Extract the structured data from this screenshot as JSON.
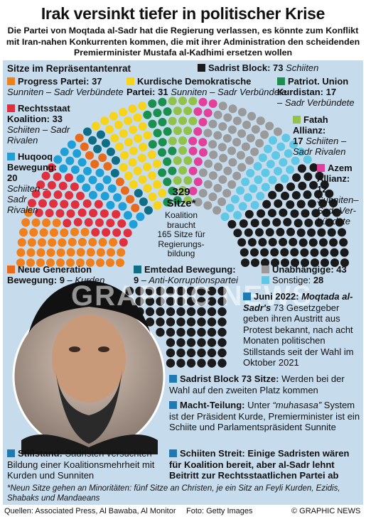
{
  "header": {
    "title": "Irak versinkt tiefer in politischer Krise",
    "subtitle": "Die Partei von Moqtada al-Sadr hat die Regierung verlassen, es könnte zum Konflikt mit Iran-nahen Konkurrenten kommen, die mit ihrer Administration den scheidenden Premierminister Mustafa al-Kadhimi ersetzen wollen"
  },
  "chart_data": {
    "type": "parliament",
    "title": "Sitze im Repräsentantenrat",
    "total_seats": 329,
    "series": [
      {
        "name": "Progress Partei",
        "seats": 37,
        "note": "Sunniten – Sadr Verbündete",
        "color": "#f07f1e"
      },
      {
        "name": "Rechtsstaat Koalition",
        "seats": 33,
        "note": "Schiiten – Sadr Rivalen",
        "color": "#e0303e"
      },
      {
        "name": "Huqooq Bewegung",
        "seats": 20,
        "note": "Schiiten – Sadr Rivalen",
        "color": "#1e9fd8"
      },
      {
        "name": "Neue Generation Bewegung",
        "seats": 9,
        "note": "Kurden",
        "color": "#e86a1c"
      },
      {
        "name": "Emtedad Bewegung",
        "seats": 9,
        "note": "Anti-Korruptionspartei",
        "color": "#0f6e86"
      },
      {
        "name": "Kurdische Demokratische Partei",
        "seats": 31,
        "note": "Sunniten – Sadr Verbündete",
        "color": "#f7d31a"
      },
      {
        "name": "Patriot. Union Kurdistan",
        "seats": 17,
        "note": "Sadr Verbündete",
        "color": "#1a8f4e"
      },
      {
        "name": "Fatah Allianz",
        "seats": 17,
        "note": "Schiiten – Sadr Rivalen",
        "color": "#92c24a"
      },
      {
        "name": "Azem Allianz",
        "seats": 12,
        "note": "Sunniten–Sadr Verbündete",
        "color": "#e2409a"
      },
      {
        "name": "Unabhängige",
        "seats": 43,
        "note": "",
        "color": "#9a9a9a"
      },
      {
        "name": "Sonstige",
        "seats": 28,
        "note": "",
        "color": "#5ec8e6"
      },
      {
        "name": "Sadrist Block",
        "seats": 73,
        "note": "Schiiten",
        "color": "#1a1a1a"
      }
    ]
  },
  "labels": {
    "chamber": "Sitze im Repräsentantenrat",
    "progress_name": "Progress Partei:",
    "progress_seats": "37",
    "progress_note": "Sunniten – Sadr Verbündete",
    "kdp_name_1": "Kurdische Demokratische",
    "kdp_name_2": "Partei:",
    "kdp_seats": "31",
    "kdp_note": "Sunniten – Sadr Verbündete",
    "sadr_name": "Sadrist Block:",
    "sadr_seats": "73",
    "sadr_note": "Schiiten",
    "puk_name_1": "Patriot. Union",
    "puk_name_2": "Kurdistan:",
    "puk_seats": "17",
    "puk_note": "– Sadr Verbündete",
    "rechts_name_1": "Rechtsstaat",
    "rechts_name_2": "Koalition:",
    "rechts_seats": "33",
    "rechts_note_1": "Schiiten – Sadr",
    "rechts_note_2": "Rivalen",
    "fatah_name_1": "Fatah",
    "fatah_name_2": "Allianz:",
    "fatah_seats": "17",
    "fatah_note_1": "Schiiten –",
    "fatah_note_2": "Sadr Rivalen",
    "huqooq_name_1": "Huqooq",
    "huqooq_name_2": "Bewegung:",
    "huqooq_seats": "20",
    "huqooq_note_1": "Schiiten –",
    "huqooq_note_2": "Sadr",
    "huqooq_note_3": "Rivalen",
    "azem_name_1": "Azem",
    "azem_name_2": "Allianz:",
    "azem_seats": "12",
    "azem_note_1": "Sunniten–",
    "azem_note_2": "Sadr Ver-",
    "azem_note_3": "bündete",
    "total": "329",
    "total_unit": "Sitze*",
    "coalition_1": "Koalition",
    "coalition_2": "braucht",
    "coalition_3": "165 Sitze für",
    "coalition_4": "Regierungs-",
    "coalition_5": "bildung",
    "newgen_name_1": "Neue Generation",
    "newgen_name_2": "Bewegung:",
    "newgen_seats": "9",
    "newgen_note": "– Kurden",
    "emtedad_name": "Emtedad Bewegung:",
    "emtedad_seats": "9",
    "emtedad_note": "– Anti-Korruptionspartei",
    "indep_name": "Unabhängige:",
    "indep_seats": "43",
    "other_name": "Sonstige:",
    "other_seats": "28"
  },
  "notes": {
    "june_head": "Juni 2022:",
    "june_bold": "Moqtada al-Sadr's",
    "june_text": "73 Gesetzgeber geben ihren Austritt aus Protest bekannt, nach acht Monaten politischen Stillstands seit der Wahl im Oktober 2021",
    "block_head": "Sadrist Block 73 Sitze:",
    "block_text": "Werden bei der Wahl auf den zweiten Platz kommen",
    "power_head": "Macht-Teilung:",
    "power_word": "Unter",
    "power_italic": "“muhasasa”",
    "power_text": "System ist der Präsident Kurde, Premierminister ist ein Schiite und Parlamentspräsident Sunnite",
    "stand_head": "Stillstand:",
    "stand_text": "Sadristen versuchten Bildung einer Koalitionsmehrheit mit Kurden und Sunniten",
    "shia_head": "Schiiten Streit:",
    "shia_text": "Einige Sadristen wären für Koalition bereit, aber al-Sadr lehnt Beitritt zur Rechtsstaatlichen Partei ab"
  },
  "footnote": "*Neun Sitze gehen an Minoritäten: fünf Sitze an Christen, je ein Sitz an Feyli Kurden, Ezidis, Shabaks und Mandaeans",
  "footer": {
    "sources": "Quellen: Associated Press, Al Bawaba, Al Monitor",
    "photo": "Foto: Getty Images",
    "credit": "© GRAPHIC NEWS"
  },
  "watermark": "GRAPHIC NEWS",
  "colors": {
    "panel": "#c6dced",
    "note_square": "#1f7ab3"
  }
}
